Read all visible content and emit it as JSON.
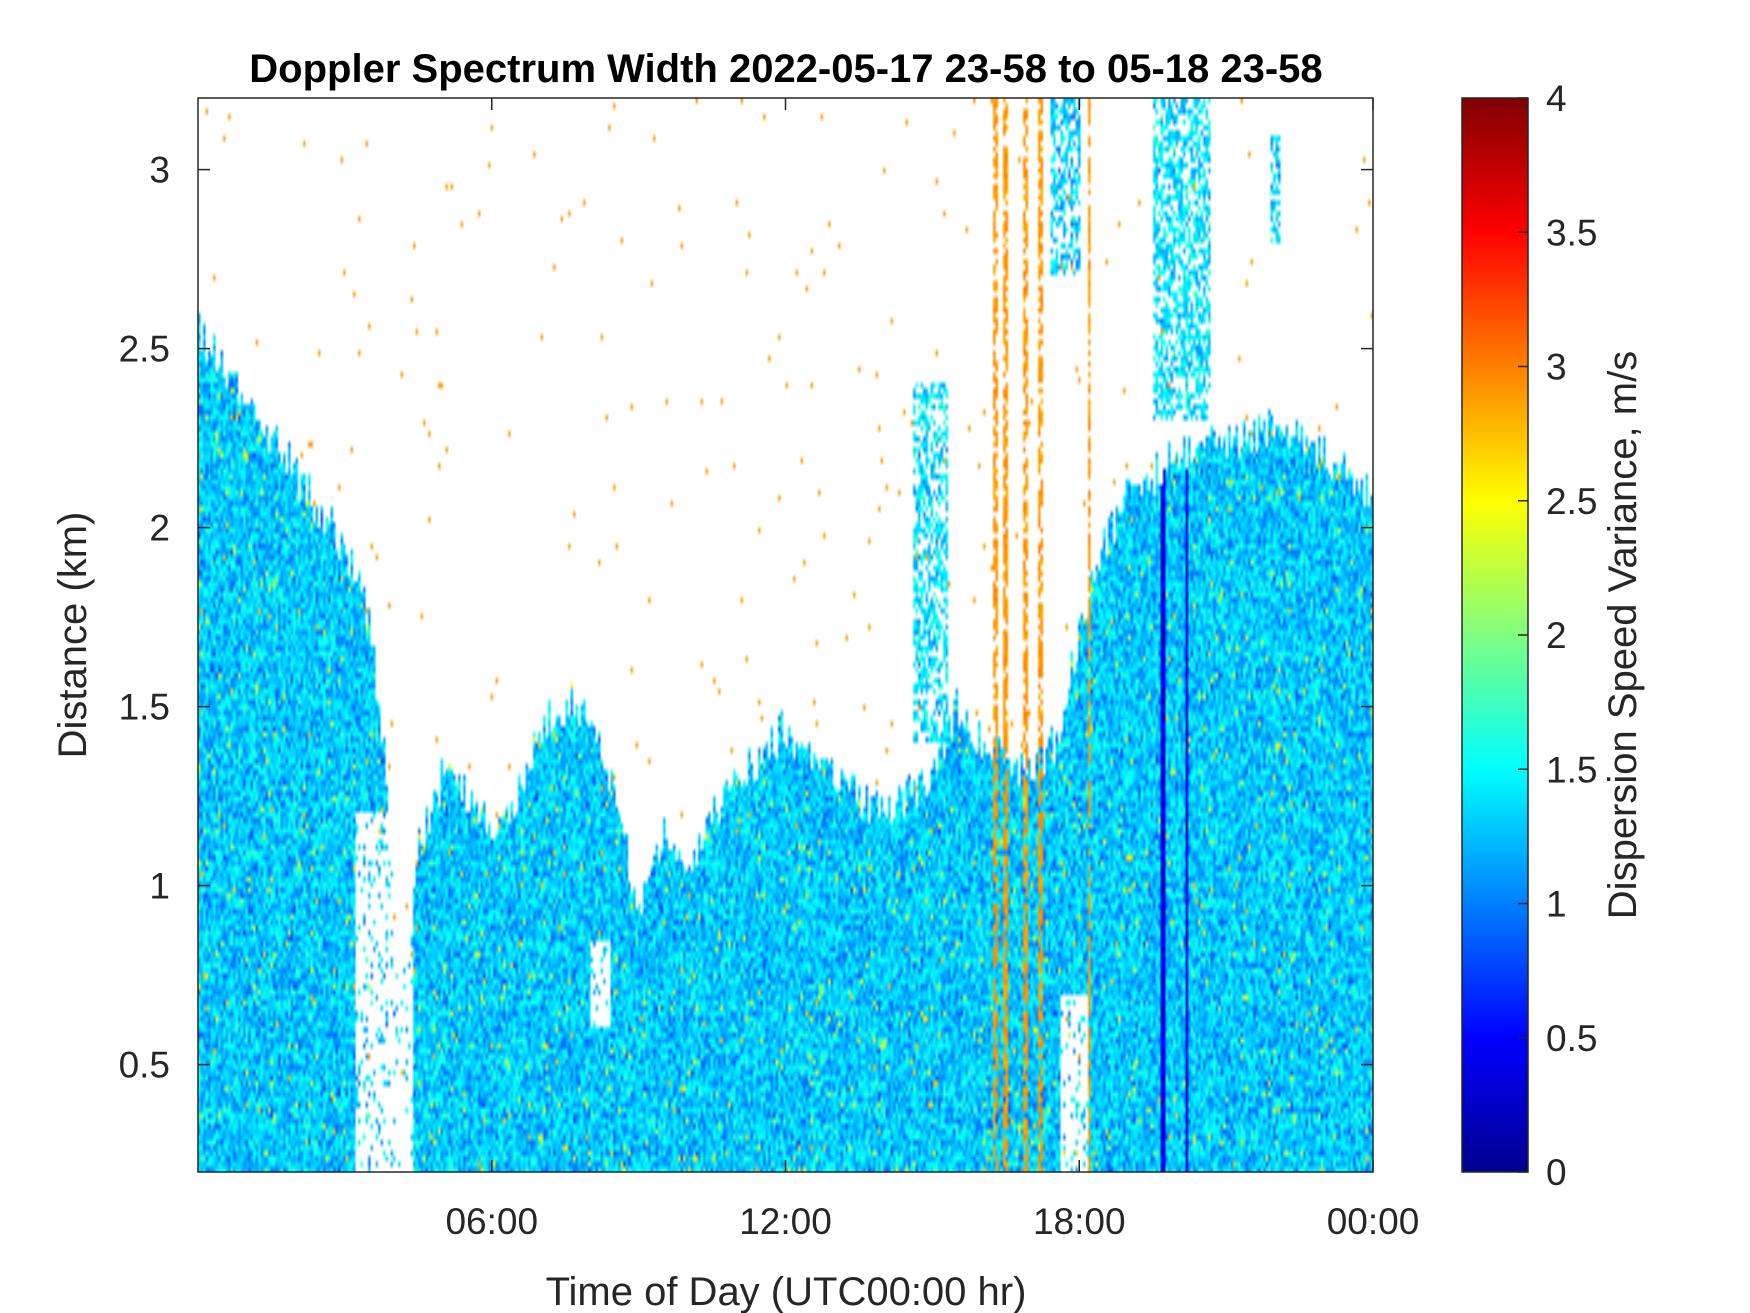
{
  "chart_data": {
    "type": "heatmap",
    "title": "Doppler Spectrum Width 2022-05-17 23-58 to 05-18 23-58",
    "xlabel": "Time of Day (UTC00:00 hr)",
    "ylabel": "Distance (km)",
    "colorbar_label": "Dispersion Speed Variance, m/s",
    "colormap": "jet",
    "xlim": [
      0,
      24
    ],
    "ylim": [
      0.2,
      3.2
    ],
    "clim": [
      0,
      4
    ],
    "x_ticks": [
      {
        "value": 6,
        "label": "06:00"
      },
      {
        "value": 12,
        "label": "12:00"
      },
      {
        "value": 18,
        "label": "18:00"
      },
      {
        "value": 24,
        "label": "00:00"
      }
    ],
    "y_ticks": [
      {
        "value": 0.5,
        "label": "0.5"
      },
      {
        "value": 1,
        "label": "1"
      },
      {
        "value": 1.5,
        "label": "1.5"
      },
      {
        "value": 2,
        "label": "2"
      },
      {
        "value": 2.5,
        "label": "2.5"
      },
      {
        "value": 3,
        "label": "3"
      }
    ],
    "colorbar_ticks": [
      {
        "value": 0,
        "label": "0"
      },
      {
        "value": 0.5,
        "label": "0.5"
      },
      {
        "value": 1,
        "label": "1"
      },
      {
        "value": 1.5,
        "label": "1.5"
      },
      {
        "value": 2,
        "label": "2"
      },
      {
        "value": 2.5,
        "label": "2.5"
      },
      {
        "value": 3,
        "label": "3"
      },
      {
        "value": 3.5,
        "label": "3.5"
      },
      {
        "value": 4,
        "label": "4"
      }
    ],
    "signal_top_profile": [
      {
        "x": 0.0,
        "top_km": 2.55
      },
      {
        "x": 0.5,
        "top_km": 2.45
      },
      {
        "x": 1.0,
        "top_km": 2.35
      },
      {
        "x": 1.5,
        "top_km": 2.25
      },
      {
        "x": 2.0,
        "top_km": 2.15
      },
      {
        "x": 2.5,
        "top_km": 2.05
      },
      {
        "x": 3.0,
        "top_km": 1.95
      },
      {
        "x": 3.5,
        "top_km": 1.75
      },
      {
        "x": 3.8,
        "top_km": 1.4
      },
      {
        "x": 4.1,
        "top_km": 0.6
      },
      {
        "x": 4.5,
        "top_km": 1.1
      },
      {
        "x": 5.0,
        "top_km": 1.3
      },
      {
        "x": 5.5,
        "top_km": 1.25
      },
      {
        "x": 6.0,
        "top_km": 1.15
      },
      {
        "x": 6.5,
        "top_km": 1.25
      },
      {
        "x": 7.0,
        "top_km": 1.45
      },
      {
        "x": 7.5,
        "top_km": 1.5
      },
      {
        "x": 8.0,
        "top_km": 1.5
      },
      {
        "x": 8.5,
        "top_km": 1.25
      },
      {
        "x": 9.0,
        "top_km": 0.95
      },
      {
        "x": 9.5,
        "top_km": 1.15
      },
      {
        "x": 10.0,
        "top_km": 1.05
      },
      {
        "x": 10.5,
        "top_km": 1.2
      },
      {
        "x": 11.0,
        "top_km": 1.3
      },
      {
        "x": 11.5,
        "top_km": 1.35
      },
      {
        "x": 12.0,
        "top_km": 1.45
      },
      {
        "x": 12.5,
        "top_km": 1.35
      },
      {
        "x": 13.0,
        "top_km": 1.3
      },
      {
        "x": 13.5,
        "top_km": 1.25
      },
      {
        "x": 14.0,
        "top_km": 1.2
      },
      {
        "x": 14.5,
        "top_km": 1.25
      },
      {
        "x": 15.0,
        "top_km": 1.3
      },
      {
        "x": 15.5,
        "top_km": 1.5
      },
      {
        "x": 16.0,
        "top_km": 1.4
      },
      {
        "x": 16.5,
        "top_km": 1.35
      },
      {
        "x": 17.0,
        "top_km": 1.3
      },
      {
        "x": 17.5,
        "top_km": 1.4
      },
      {
        "x": 18.0,
        "top_km": 1.7
      },
      {
        "x": 18.5,
        "top_km": 1.95
      },
      {
        "x": 19.0,
        "top_km": 2.1
      },
      {
        "x": 19.5,
        "top_km": 2.15
      },
      {
        "x": 20.0,
        "top_km": 2.2
      },
      {
        "x": 20.5,
        "top_km": 2.2
      },
      {
        "x": 21.0,
        "top_km": 2.25
      },
      {
        "x": 21.5,
        "top_km": 2.25
      },
      {
        "x": 22.0,
        "top_km": 2.3
      },
      {
        "x": 22.5,
        "top_km": 2.25
      },
      {
        "x": 23.0,
        "top_km": 2.2
      },
      {
        "x": 23.5,
        "top_km": 2.15
      },
      {
        "x": 24.0,
        "top_km": 2.1
      }
    ],
    "signal_gaps": [
      {
        "x_from": 3.2,
        "x_to": 4.4,
        "y_from": 0.2,
        "y_to": 1.2
      },
      {
        "x_from": 8.0,
        "x_to": 8.4,
        "y_from": 0.6,
        "y_to": 0.85
      },
      {
        "x_from": 17.6,
        "x_to": 18.2,
        "y_from": 0.2,
        "y_to": 0.7
      }
    ],
    "upper_plume_regions": [
      {
        "x_from": 14.6,
        "x_to": 15.3,
        "y_from": 1.4,
        "y_to": 2.4,
        "level_ms": 1.4
      },
      {
        "x_from": 17.4,
        "x_to": 18.0,
        "y_from": 2.7,
        "y_to": 3.2,
        "level_ms": 1.3
      },
      {
        "x_from": 19.5,
        "x_to": 20.7,
        "y_from": 2.3,
        "y_to": 3.2,
        "level_ms": 1.4
      },
      {
        "x_from": 21.9,
        "x_to": 22.1,
        "y_from": 2.8,
        "y_to": 3.1,
        "level_ms": 1.3
      }
    ],
    "vertical_streaks": [
      {
        "x": 16.3,
        "level_ms": 2.9
      },
      {
        "x": 16.5,
        "level_ms": 2.9
      },
      {
        "x": 16.9,
        "level_ms": 2.9
      },
      {
        "x": 17.2,
        "level_ms": 2.9
      },
      {
        "x": 18.2,
        "level_ms": 2.9
      },
      {
        "x": 19.7,
        "level_ms": 0.2
      },
      {
        "x": 20.2,
        "level_ms": 0.2
      }
    ],
    "typical_value_ms": 1.3,
    "value_spread_ms": 0.35
  }
}
